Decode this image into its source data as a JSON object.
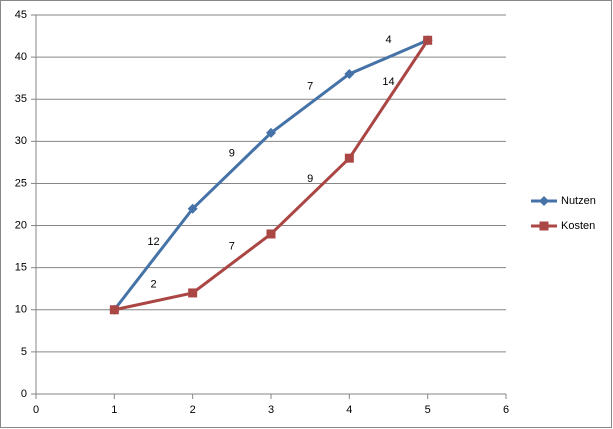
{
  "chart_data": {
    "type": "line",
    "x": [
      1,
      2,
      3,
      4,
      5
    ],
    "series": [
      {
        "name": "Nutzen",
        "color": "#4572a7",
        "marker": "diamond",
        "values": [
          10,
          22,
          31,
          38,
          42
        ],
        "segment_labels": [
          "12",
          "9",
          "7",
          "4"
        ]
      },
      {
        "name": "Kosten",
        "color": "#aa4643",
        "marker": "square",
        "values": [
          10,
          12,
          19,
          28,
          42
        ],
        "segment_labels": [
          "2",
          "7",
          "9",
          "14"
        ]
      }
    ],
    "xlim": [
      0,
      6
    ],
    "xticks": [
      0,
      1,
      2,
      3,
      4,
      5,
      6
    ],
    "ylim": [
      0,
      45
    ],
    "yticks": [
      0,
      5,
      10,
      15,
      20,
      25,
      30,
      35,
      40,
      45
    ],
    "grid": true,
    "legend": "right"
  }
}
